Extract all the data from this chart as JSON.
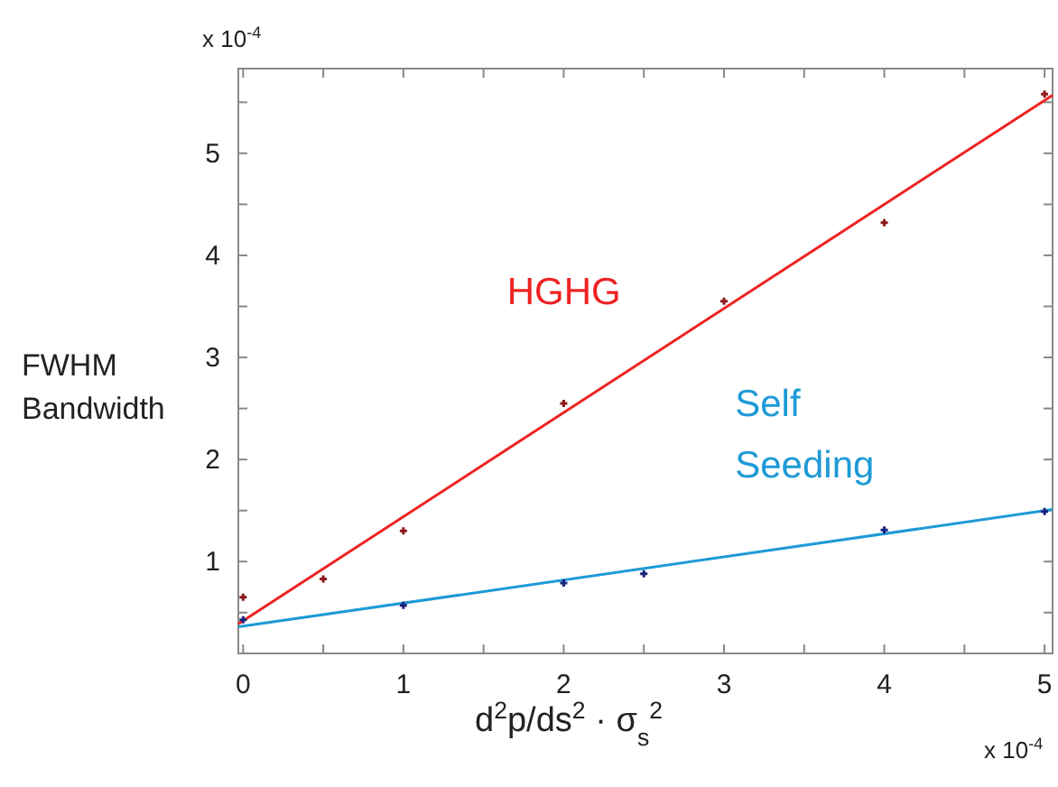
{
  "chart_data": {
    "type": "scatter",
    "ylabel": "FWHM\nBandwidth",
    "xlabel": "d$^{2}$p/ds$^{2}$ · σ$_{s}$$^{2}$",
    "annotations": [
      "x 10$^{-4}$",
      "x 10$^{-4}$"
    ],
    "xlim": [
      -0.03,
      5.05
    ],
    "ylim": [
      0.1,
      5.83
    ],
    "xticks": [
      0,
      {
        "value": 0.5,
        "label": null
      },
      1,
      {
        "value": 1.5,
        "label": null
      },
      2,
      {
        "value": 2.5,
        "label": null
      },
      3,
      {
        "value": 3.5,
        "label": null
      },
      4,
      {
        "value": 4.5,
        "label": null
      },
      5
    ],
    "yticks": [
      {
        "value": 0.5,
        "label": null
      },
      1,
      {
        "value": 1.5,
        "label": null
      },
      2,
      {
        "value": 2.5,
        "label": null
      },
      3,
      {
        "value": 3.5,
        "label": null
      },
      4,
      {
        "value": 4.5,
        "label": null
      },
      5,
      {
        "value": 5.5,
        "label": null
      }
    ],
    "grid": false,
    "legend": false,
    "series": [
      {
        "marker": "cross",
        "color": "#8b1a1a",
        "x": [
          0,
          0.5,
          1,
          2,
          3,
          4,
          5
        ],
        "values": [
          0.65,
          0.83,
          1.3,
          2.55,
          3.55,
          4.32,
          5.58
        ]
      },
      {
        "marker": "cross",
        "color": "#1a237e",
        "x": [
          0,
          1,
          2,
          2.5,
          4,
          5
        ],
        "values": [
          0.43,
          0.57,
          0.79,
          0.88,
          1.31,
          1.49
        ]
      },
      {
        "type": "line",
        "name": "HGHG",
        "color": "#ee2222",
        "line_style": "solid",
        "x": [
          -0.03,
          5.05
        ],
        "values": [
          0.39,
          5.57
        ]
      },
      {
        "type": "line",
        "name": "Self\nSeeding",
        "color": "#1e9ad6",
        "line_style": "solid",
        "x": [
          -0.03,
          5.05
        ],
        "values": [
          0.36,
          1.51
        ]
      }
    ]
  }
}
